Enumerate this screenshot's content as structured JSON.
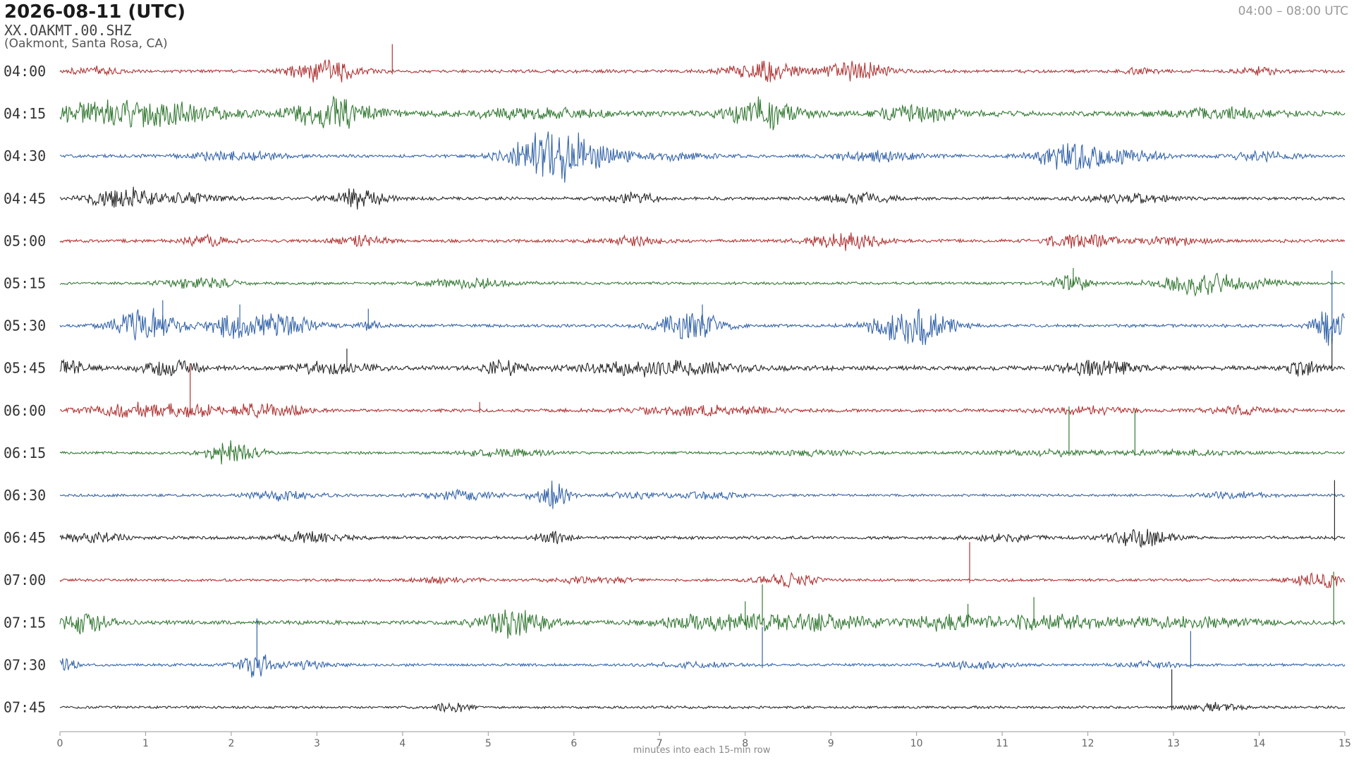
{
  "header": {
    "title": "2026-08-11  (UTC)",
    "station": "XX.OAKMT.00.SHZ",
    "location": "(Oakmont, Santa Rosa, CA)",
    "time_range": "04:00 – 08:00 UTC"
  },
  "colors": {
    "red": "#b03535",
    "green": "#357a35",
    "blue": "#3565aa",
    "black": "#2a2a2a",
    "axis": "#999999"
  },
  "chart_data": {
    "type": "line",
    "title": "",
    "xlabel": "minutes into each 15-min row",
    "ylabel": "",
    "xlim": [
      0,
      15
    ],
    "x_ticks": [
      0,
      1,
      2,
      3,
      4,
      5,
      6,
      7,
      8,
      9,
      10,
      11,
      12,
      13,
      14,
      15
    ],
    "grid": false,
    "legend": "none",
    "series": [
      {
        "row_label": "04:00",
        "color": "red",
        "noise": 0.35,
        "events": [
          [
            0.4,
            0.8,
            0.45
          ],
          [
            3.1,
            2.5,
            0.55
          ],
          [
            8.2,
            2.5,
            0.55
          ],
          [
            9.3,
            2.0,
            0.55
          ],
          [
            12.6,
            0.5,
            0.3
          ],
          [
            14.0,
            1.0,
            0.35
          ]
        ],
        "spikes": [
          [
            3.88,
            3.2
          ]
        ]
      },
      {
        "row_label": "04:15",
        "color": "green",
        "noise": 0.55,
        "events": [
          [
            0.8,
            3.0,
            1.5
          ],
          [
            3.2,
            3.2,
            0.7
          ],
          [
            5.5,
            1.0,
            1.3
          ],
          [
            8.2,
            3.2,
            0.6
          ],
          [
            10.0,
            1.5,
            0.8
          ],
          [
            13.5,
            1.0,
            1.0
          ]
        ],
        "spikes": []
      },
      {
        "row_label": "04:30",
        "color": "blue",
        "noise": 0.35,
        "events": [
          [
            2.0,
            0.9,
            0.9
          ],
          [
            5.75,
            6.0,
            0.7
          ],
          [
            6.3,
            1.2,
            0.6
          ],
          [
            7.2,
            0.8,
            0.6
          ],
          [
            9.6,
            1.0,
            0.8
          ],
          [
            11.8,
            3.5,
            0.6
          ],
          [
            12.5,
            1.2,
            0.6
          ],
          [
            14.0,
            1.0,
            0.6
          ]
        ],
        "spikes": []
      },
      {
        "row_label": "04:45",
        "color": "black",
        "noise": 0.35,
        "events": [
          [
            0.7,
            2.4,
            0.55
          ],
          [
            1.5,
            1.0,
            0.6
          ],
          [
            3.5,
            2.4,
            0.5
          ],
          [
            6.7,
            1.2,
            0.4
          ],
          [
            9.3,
            1.0,
            0.6
          ],
          [
            12.5,
            0.9,
            0.8
          ]
        ],
        "spikes": []
      },
      {
        "row_label": "05:00",
        "color": "red",
        "noise": 0.35,
        "events": [
          [
            1.7,
            1.3,
            0.4
          ],
          [
            3.5,
            1.3,
            0.4
          ],
          [
            6.7,
            1.0,
            0.5
          ],
          [
            9.2,
            2.0,
            0.6
          ],
          [
            11.9,
            1.6,
            0.6
          ],
          [
            13.0,
            0.8,
            0.6
          ]
        ],
        "spikes": []
      },
      {
        "row_label": "05:15",
        "color": "green",
        "noise": 0.3,
        "events": [
          [
            1.6,
            1.2,
            0.6
          ],
          [
            4.8,
            0.9,
            0.8
          ],
          [
            11.8,
            2.0,
            0.3
          ],
          [
            13.3,
            2.5,
            0.7
          ],
          [
            14.0,
            1.0,
            0.5
          ]
        ],
        "spikes": [
          [
            11.83,
            1.8
          ]
        ]
      },
      {
        "row_label": "05:30",
        "color": "blue",
        "noise": 0.35,
        "events": [
          [
            1.0,
            3.5,
            0.55
          ],
          [
            2.0,
            2.5,
            0.4
          ],
          [
            2.6,
            2.6,
            0.55
          ],
          [
            3.6,
            1.0,
            0.3
          ],
          [
            7.35,
            3.2,
            0.55
          ],
          [
            9.95,
            4.2,
            0.65
          ],
          [
            14.85,
            4.2,
            0.3
          ]
        ],
        "spikes": [
          [
            1.2,
            3.0
          ],
          [
            2.1,
            2.5
          ],
          [
            3.6,
            2.0
          ],
          [
            7.5,
            2.5
          ],
          [
            14.85,
            6.5
          ]
        ]
      },
      {
        "row_label": "05:45",
        "color": "black",
        "noise": 0.5,
        "events": [
          [
            0.1,
            1.8,
            0.3
          ],
          [
            1.3,
            1.5,
            0.5
          ],
          [
            3.2,
            1.2,
            0.6
          ],
          [
            5.2,
            1.5,
            0.3
          ],
          [
            7.0,
            1.5,
            1.4
          ],
          [
            12.1,
            1.6,
            0.6
          ],
          [
            14.5,
            1.8,
            0.3
          ]
        ],
        "spikes": [
          [
            3.35,
            2.3
          ],
          [
            14.85,
            3.5
          ]
        ]
      },
      {
        "row_label": "06:00",
        "color": "red",
        "noise": 0.35,
        "events": [
          [
            0.9,
            1.5,
            0.8
          ],
          [
            1.6,
            1.0,
            0.4
          ],
          [
            2.4,
            1.5,
            0.6
          ],
          [
            7.5,
            1.0,
            1.2
          ],
          [
            12.0,
            0.7,
            0.8
          ],
          [
            13.8,
            0.8,
            0.6
          ]
        ],
        "spikes": [
          [
            1.52,
            5.5
          ],
          [
            4.9,
            1.0
          ]
        ]
      },
      {
        "row_label": "06:15",
        "color": "green",
        "noise": 0.3,
        "events": [
          [
            2.0,
            2.5,
            0.45
          ],
          [
            5.2,
            0.8,
            0.8
          ],
          [
            8.8,
            0.6,
            0.8
          ],
          [
            11.6,
            0.5,
            1.2
          ],
          [
            13.2,
            0.5,
            1.0
          ]
        ],
        "spikes": [
          [
            11.78,
            5.5
          ],
          [
            12.55,
            5.0
          ]
        ]
      },
      {
        "row_label": "06:30",
        "color": "blue",
        "noise": 0.3,
        "events": [
          [
            2.6,
            1.0,
            0.6
          ],
          [
            4.7,
            1.0,
            0.6
          ],
          [
            5.75,
            3.2,
            0.3
          ],
          [
            6.8,
            0.6,
            0.6
          ],
          [
            7.6,
            0.8,
            0.5
          ],
          [
            13.7,
            0.6,
            0.6
          ]
        ],
        "spikes": []
      },
      {
        "row_label": "06:45",
        "color": "black",
        "noise": 0.35,
        "events": [
          [
            0.4,
            1.2,
            0.5
          ],
          [
            2.9,
            1.0,
            0.6
          ],
          [
            5.75,
            1.3,
            0.3
          ],
          [
            11.0,
            0.8,
            0.6
          ],
          [
            12.6,
            2.2,
            0.5
          ]
        ],
        "spikes": [
          [
            14.88,
            6.8
          ]
        ]
      },
      {
        "row_label": "07:00",
        "color": "red",
        "noise": 0.3,
        "events": [
          [
            4.5,
            0.6,
            0.6
          ],
          [
            6.2,
            0.8,
            0.6
          ],
          [
            8.5,
            1.6,
            0.5
          ],
          [
            14.7,
            1.5,
            0.5
          ]
        ],
        "spikes": [
          [
            10.62,
            4.5
          ]
        ]
      },
      {
        "row_label": "07:15",
        "color": "green",
        "noise": 0.45,
        "events": [
          [
            0.3,
            2.2,
            0.45
          ],
          [
            5.3,
            3.2,
            0.6
          ],
          [
            7.6,
            1.5,
            1.0
          ],
          [
            8.8,
            1.6,
            1.2
          ],
          [
            10.4,
            1.5,
            0.8
          ],
          [
            11.5,
            1.5,
            0.8
          ],
          [
            13.0,
            1.0,
            1.5
          ]
        ],
        "spikes": [
          [
            8.2,
            4.5
          ],
          [
            8.0,
            2.5
          ],
          [
            11.37,
            3.0
          ],
          [
            10.6,
            2.2
          ],
          [
            14.87,
            6.0
          ]
        ]
      },
      {
        "row_label": "07:30",
        "color": "blue",
        "noise": 0.3,
        "events": [
          [
            0.05,
            1.8,
            0.2
          ],
          [
            2.3,
            2.5,
            0.3
          ],
          [
            2.9,
            1.0,
            0.4
          ],
          [
            7.4,
            0.6,
            0.6
          ],
          [
            10.7,
            0.9,
            0.5
          ],
          [
            12.7,
            0.6,
            0.6
          ]
        ],
        "spikes": [
          [
            2.3,
            5.5
          ],
          [
            8.2,
            4.5
          ],
          [
            13.2,
            4.0
          ]
        ]
      },
      {
        "row_label": "07:45",
        "color": "black",
        "noise": 0.28,
        "events": [
          [
            4.6,
            1.2,
            0.3
          ],
          [
            13.5,
            0.9,
            0.5
          ]
        ],
        "spikes": [
          [
            12.98,
            4.5
          ]
        ]
      }
    ]
  }
}
